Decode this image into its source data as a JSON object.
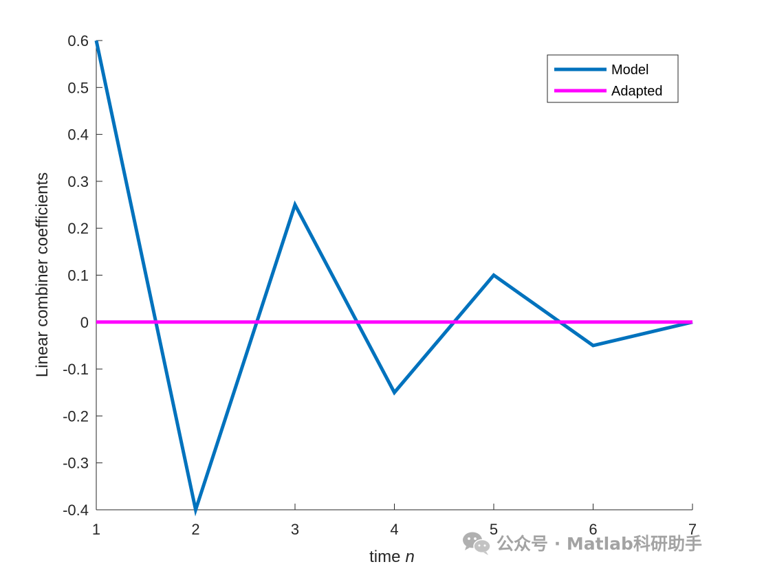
{
  "chart_data": {
    "type": "line",
    "title": "",
    "xlabel": "time",
    "xlabel_var": "n",
    "ylabel": "Linear combiner coefficients",
    "x": [
      1,
      2,
      3,
      4,
      5,
      6,
      7
    ],
    "xlim": [
      1,
      7
    ],
    "ylim": [
      -0.4,
      0.6
    ],
    "x_ticks": [
      "1",
      "2",
      "3",
      "4",
      "5",
      "6",
      "7"
    ],
    "y_ticks": [
      "-0.4",
      "-0.3",
      "-0.2",
      "-0.1",
      "0",
      "0.1",
      "0.2",
      "0.3",
      "0.4",
      "0.5",
      "0.6"
    ],
    "y_tick_values": [
      -0.4,
      -0.3,
      -0.2,
      -0.1,
      0,
      0.1,
      0.2,
      0.3,
      0.4,
      0.5,
      0.6
    ],
    "grid": false,
    "legend_position": "top-right",
    "series": [
      {
        "name": "Model",
        "color": "#0072BD",
        "values": [
          0.6,
          -0.4,
          0.25,
          -0.15,
          0.1,
          -0.05,
          0
        ]
      },
      {
        "name": "Adapted",
        "color": "#FF00FF",
        "values": [
          0,
          0,
          0,
          0,
          0,
          0,
          0
        ]
      }
    ]
  },
  "watermark": {
    "text": "公众号 · Matlab科研助手",
    "icon": "wechat-icon"
  }
}
